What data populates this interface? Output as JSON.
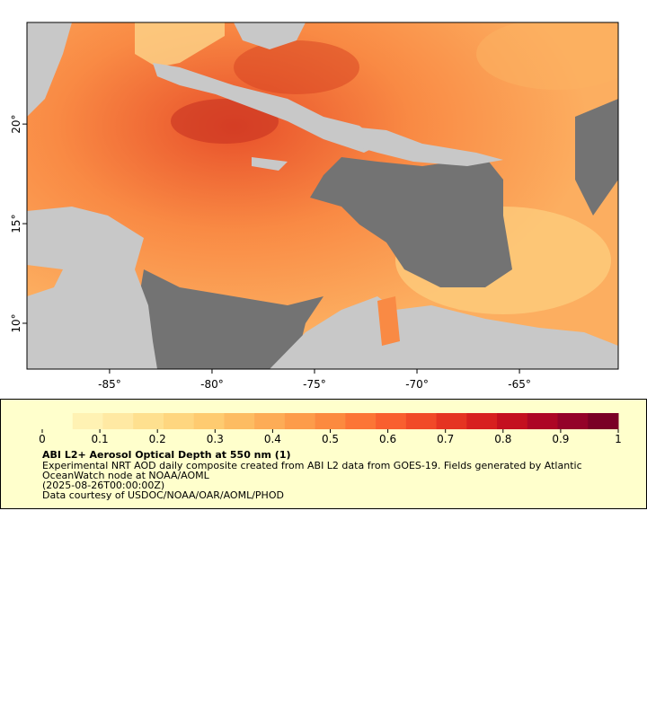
{
  "map": {
    "xlim": [
      -89.03,
      -60.18
    ],
    "ylim": [
      7.7,
      25.1
    ],
    "xticks": [
      {
        "value": -85,
        "label": "-85°"
      },
      {
        "value": -80,
        "label": "-80°"
      },
      {
        "value": -75,
        "label": "-75°"
      },
      {
        "value": -70,
        "label": "-70°"
      },
      {
        "value": -65,
        "label": "-65°"
      }
    ],
    "yticks": [
      {
        "value": 10,
        "label": "10°"
      },
      {
        "value": 15,
        "label": "15°"
      },
      {
        "value": 20,
        "label": "20°"
      }
    ]
  },
  "colorbar": {
    "range": [
      0,
      1
    ],
    "ticks": [
      0,
      0.1,
      0.2,
      0.3,
      0.4,
      0.5,
      0.6,
      0.7,
      0.8,
      0.9,
      1
    ],
    "colors": [
      "#ffffcc",
      "#fff2b3",
      "#ffe9a3",
      "#fee08f",
      "#fed67f",
      "#fecb70",
      "#fdbc62",
      "#fdac56",
      "#fd9c4a",
      "#fc8a3f",
      "#fc7536",
      "#f95f2f",
      "#f14a28",
      "#e53422",
      "#d7201f",
      "#c4101f",
      "#ad0625",
      "#940229",
      "#7a0026"
    ]
  },
  "legend": {
    "title": "ABI L2+ Aerosol Optical Depth at 550 nm (1)",
    "lines": [
      "Experimental NRT AOD daily composite created from ABI L2 data from GOES-19. Fields generated by Atlantic",
      "OceanWatch node at NOAA/AOML",
      "(2025-08-26T00:00:00Z)",
      "Data courtesy of USDOC/NOAA/OAR/AOML/PHOD"
    ]
  }
}
